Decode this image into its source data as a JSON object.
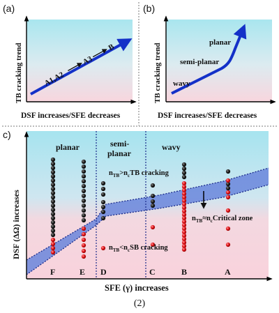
{
  "panel_a": {
    "tag": "(a)",
    "ylabel": "TB cracking trend",
    "xlabel": "DSF increases/SFE decreases",
    "seq_1": "A1,A2",
    "seq_2": "A3",
    "seq_3": "B"
  },
  "panel_b": {
    "tag": "(b)",
    "ylabel": "TB cracking trend",
    "xlabel": "DSF increases/SFE decreases",
    "stage_low": "wavy",
    "stage_mid": "semi-planar",
    "stage_high": "planar"
  },
  "panel_c": {
    "tag": "c)",
    "ylabel": "DSF (ΔΩ) increases",
    "xlabel": "SFE (γ) increases",
    "region_planar": "planar",
    "region_semi_1": "semi-",
    "region_semi_2": "planar",
    "region_wavy": "wavy",
    "tb_pre": "n",
    "tb_sub1": "TB",
    "tb_mid": ">n",
    "tb_sub2": "c",
    "tb_post": "TB  cracking",
    "sb_pre": "n",
    "sb_sub1": "TB",
    "sb_mid": "<n",
    "sb_sub2": "c",
    "sb_post": "SB  cracking",
    "cz_pre": "n",
    "cz_sub1": "TB",
    "cz_mid": "≈n",
    "cz_sub2": "c",
    "cz_post": "Critical  zone",
    "alloys": [
      "F",
      "E",
      "D",
      "C",
      "B",
      "A"
    ]
  },
  "caption": "(2)",
  "colors": {
    "bg_top": "#a9e6ef",
    "bg_bottom": "#f8d6de",
    "arrow": "#1431c8",
    "band": "#6a86dc",
    "dot_black": "#1a1a1a",
    "dot_red": "#e0141a"
  }
}
